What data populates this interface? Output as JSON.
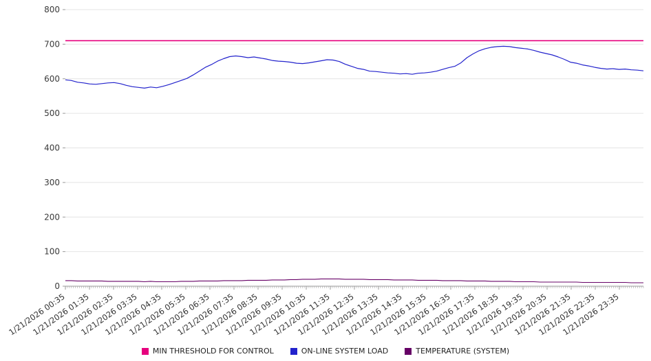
{
  "chart_data": {
    "type": "line",
    "title": "",
    "xlabel": "",
    "ylabel": "",
    "ylim": [
      0,
      800
    ],
    "y_ticks": [
      0,
      100,
      200,
      300,
      400,
      500,
      600,
      700,
      800
    ],
    "grid": "horizontal",
    "legend_position": "bottom",
    "x_tick_labels": [
      "1/21/2026 00:35",
      "1/21/2026 01:35",
      "1/21/2026 02:35",
      "1/21/2026 03:35",
      "1/21/2026 04:35",
      "1/21/2026 05:35",
      "1/21/2026 06:35",
      "1/21/2026 07:35",
      "1/21/2026 08:35",
      "1/21/2026 09:35",
      "1/21/2026 10:35",
      "1/21/2026 11:35",
      "1/21/2026 12:35",
      "1/21/2026 13:35",
      "1/21/2026 14:35",
      "1/21/2026 15:35",
      "1/21/2026 16:35",
      "1/21/2026 17:35",
      "1/21/2026 18:35",
      "1/21/2026 19:35",
      "1/21/2026 20:35",
      "1/21/2026 21:35",
      "1/21/2026 22:35",
      "1/21/2026 23:35"
    ],
    "series": [
      {
        "id": "min-threshold",
        "name": "MIN THRESHOLD FOR CONTROL",
        "color": "#e6007e",
        "type": "constant",
        "value": 710,
        "width": 1.6
      },
      {
        "id": "system-load",
        "name": "ON-LINE SYSTEM LOAD",
        "color": "#2222cc",
        "type": "line",
        "width": 1.2,
        "values": [
          597,
          595,
          590,
          588,
          585,
          584,
          586,
          588,
          589,
          586,
          581,
          577,
          575,
          573,
          576,
          574,
          578,
          583,
          589,
          595,
          601,
          611,
          622,
          633,
          641,
          651,
          658,
          664,
          666,
          664,
          661,
          663,
          660,
          657,
          653,
          651,
          650,
          648,
          645,
          644,
          646,
          649,
          652,
          655,
          654,
          650,
          642,
          636,
          630,
          627,
          622,
          621,
          619,
          617,
          616,
          614,
          615,
          613,
          616,
          617,
          619,
          622,
          627,
          632,
          636,
          646,
          661,
          672,
          681,
          687,
          691,
          693,
          694,
          693,
          690,
          688,
          686,
          682,
          677,
          673,
          669,
          663,
          656,
          648,
          645,
          640,
          637,
          633,
          630,
          628,
          629,
          627,
          628,
          626,
          625,
          623
        ]
      },
      {
        "id": "temperature",
        "name": "TEMPERATURE (SYSTEM)",
        "color": "#660066",
        "type": "line",
        "width": 1.1,
        "values": [
          16,
          16,
          15,
          15,
          15,
          15,
          15,
          14,
          14,
          14,
          14,
          14,
          14,
          13,
          14,
          13,
          13,
          13,
          13,
          14,
          14,
          14,
          15,
          15,
          15,
          15,
          16,
          16,
          16,
          16,
          17,
          17,
          17,
          17,
          18,
          18,
          18,
          19,
          19,
          20,
          20,
          20,
          21,
          21,
          21,
          21,
          20,
          20,
          20,
          20,
          19,
          19,
          19,
          19,
          18,
          18,
          18,
          18,
          17,
          17,
          17,
          17,
          16,
          16,
          16,
          16,
          15,
          15,
          15,
          15,
          14,
          14,
          14,
          14,
          13,
          13,
          13,
          13,
          12,
          12,
          12,
          12,
          12,
          12,
          12,
          11,
          11,
          11,
          11,
          11,
          11,
          11,
          11,
          10,
          10,
          10
        ]
      }
    ],
    "colors": {
      "gridline": "#e4e4e4",
      "axis": "#999999",
      "tick_label": "#333333"
    }
  },
  "legend": {
    "items": [
      {
        "label": "MIN THRESHOLD FOR CONTROL"
      },
      {
        "label": "ON-LINE SYSTEM LOAD"
      },
      {
        "label": "TEMPERATURE (SYSTEM)"
      }
    ]
  }
}
